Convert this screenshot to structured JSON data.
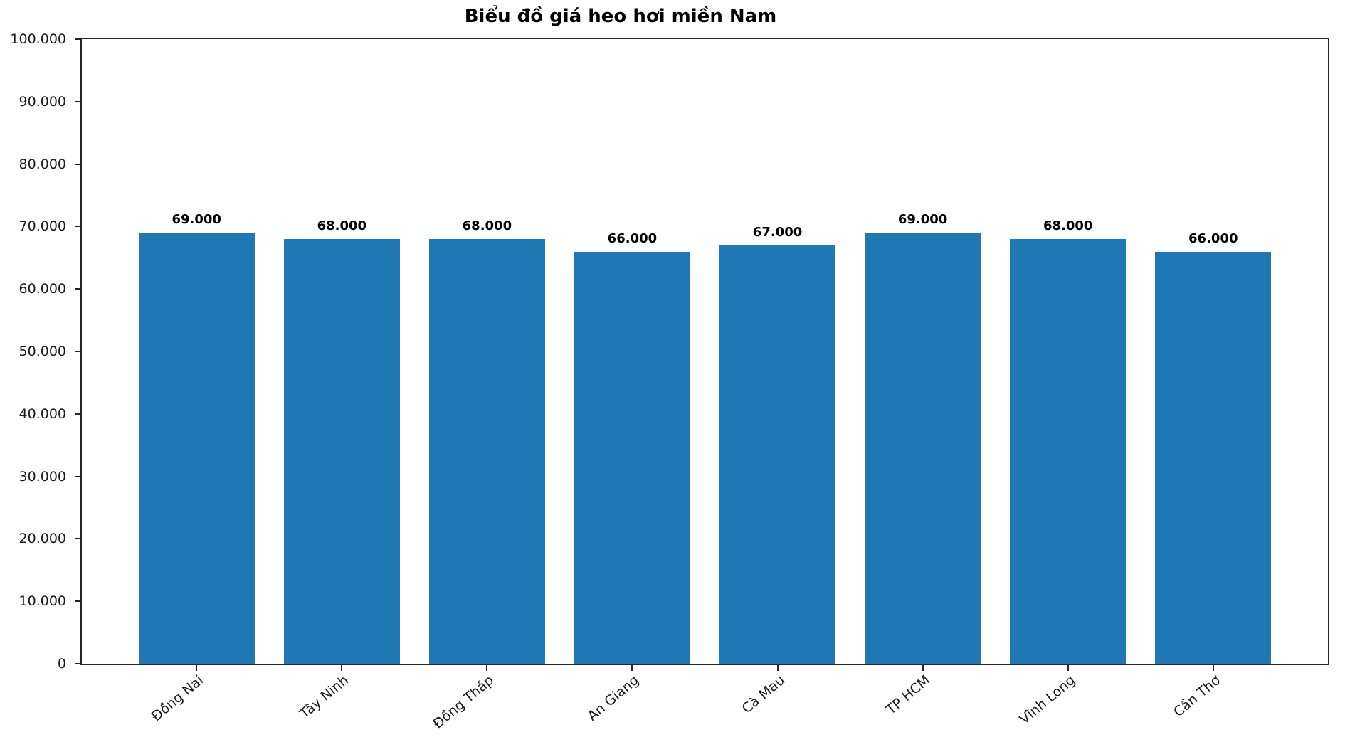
{
  "chart_data": {
    "type": "bar",
    "title": "Biểu đồ giá heo hơi miền Nam",
    "categories": [
      "Đồng Nai",
      "Tây Ninh",
      "Đồng Tháp",
      "An Giang",
      "Cà Mau",
      "TP HCM",
      "Vĩnh Long",
      "Cần Thơ"
    ],
    "values": [
      69000,
      68000,
      68000,
      66000,
      67000,
      69000,
      68000,
      66000
    ],
    "bar_labels": [
      "69.000",
      "68.000",
      "68.000",
      "66.000",
      "67.000",
      "69.000",
      "68.000",
      "66.000"
    ],
    "ylim": [
      0,
      100000
    ],
    "ytick_step": 10000,
    "ytick_labels": [
      "0",
      "10.000",
      "20.000",
      "30.000",
      "40.000",
      "50.000",
      "60.000",
      "70.000",
      "80.000",
      "90.000",
      "100.000"
    ],
    "xlabel": "",
    "ylabel": "",
    "grid": false,
    "bar_color": "#1f77b4",
    "axis_color": "#262626",
    "x_tick_rotation_deg": 40
  }
}
